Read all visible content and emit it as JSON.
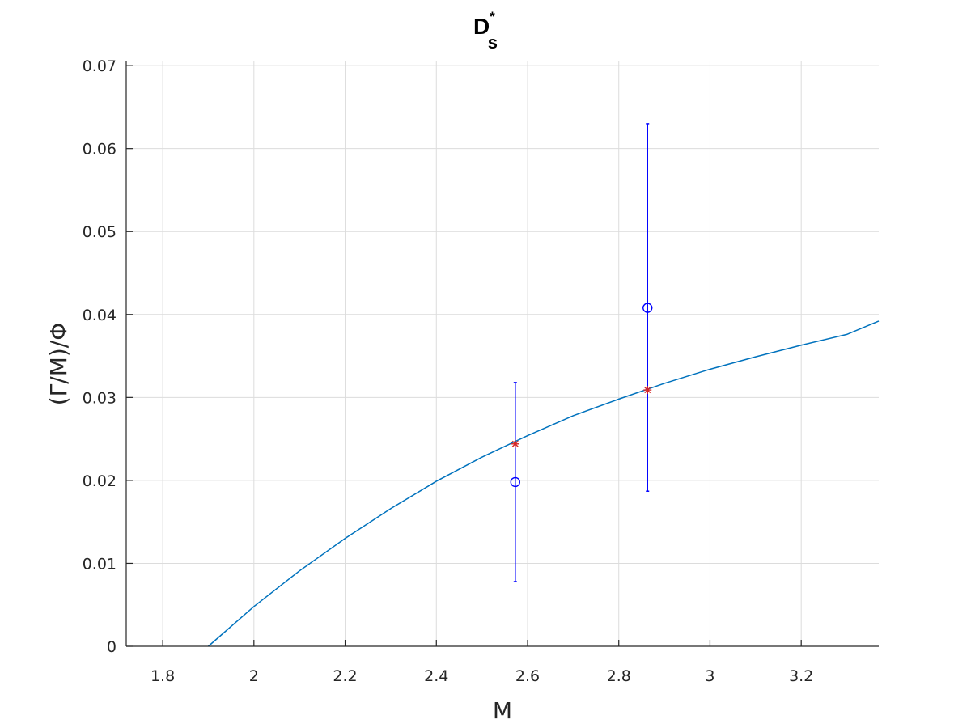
{
  "chart_data": {
    "type": "scatter",
    "title_main": "D",
    "title_sup": "*",
    "title_sub": "s",
    "xlabel": "M",
    "ylabel": "(Γ/M)/Φ",
    "xlim": [
      1.72,
      3.37
    ],
    "ylim": [
      0,
      0.0705
    ],
    "xticks": [
      1.8,
      2,
      2.2,
      2.4,
      2.6,
      2.8,
      3,
      3.2
    ],
    "xtick_labels": [
      "1.8",
      "2",
      "2.2",
      "2.4",
      "2.6",
      "2.8",
      "3",
      "3.2"
    ],
    "yticks": [
      0,
      0.01,
      0.02,
      0.03,
      0.04,
      0.05,
      0.06,
      0.07
    ],
    "ytick_labels": [
      "0",
      "0.01",
      "0.02",
      "0.03",
      "0.04",
      "0.05",
      "0.06",
      "0.07"
    ],
    "grid": true,
    "curve": {
      "color": "#0072bd",
      "x": [
        1.9,
        2.0,
        2.1,
        2.2,
        2.3,
        2.4,
        2.5,
        2.6,
        2.7,
        2.8,
        2.9,
        3.0,
        3.1,
        3.2,
        3.3,
        3.37
      ],
      "y": [
        0.0,
        0.0048,
        0.0091,
        0.013,
        0.0166,
        0.0199,
        0.0228,
        0.0254,
        0.0278,
        0.0298,
        0.0317,
        0.0334,
        0.0349,
        0.0363,
        0.0376,
        0.0392
      ]
    },
    "measurements": {
      "color": "#0000ff",
      "marker": "circle",
      "points": [
        {
          "x": 2.573,
          "y": 0.0198,
          "err_low": 0.0078,
          "err_high": 0.0318
        },
        {
          "x": 2.863,
          "y": 0.0408,
          "err_low": 0.0187,
          "err_high": 0.063
        }
      ]
    },
    "predictions": {
      "color": "#d62728",
      "marker": "star",
      "points": [
        {
          "x": 2.573,
          "y": 0.0244
        },
        {
          "x": 2.863,
          "y": 0.0309
        }
      ]
    }
  }
}
